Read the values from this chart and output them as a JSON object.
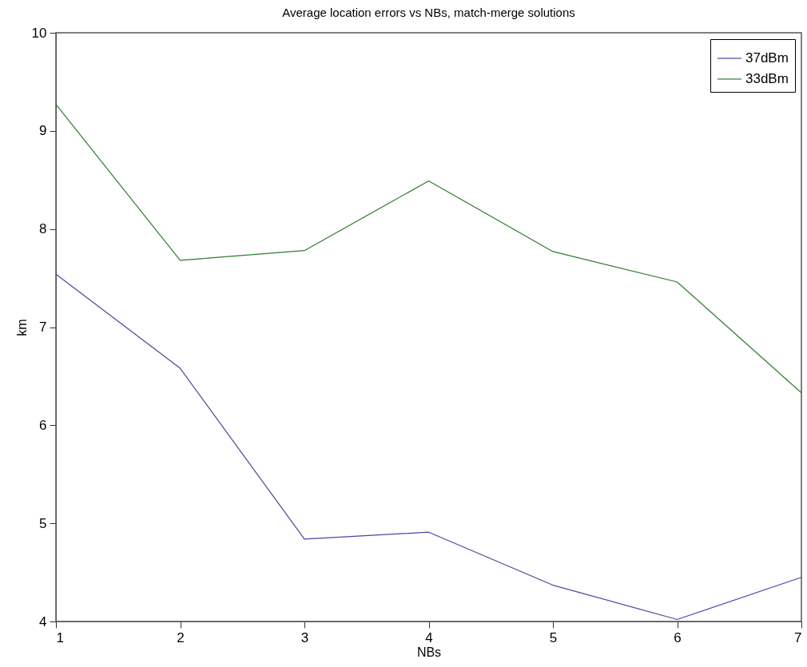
{
  "chart_data": {
    "type": "line",
    "title": "Average location errors vs NBs, match-merge solutions",
    "xlabel": "NBs",
    "ylabel": "km",
    "x": [
      1,
      2,
      3,
      4,
      5,
      6,
      7
    ],
    "series": [
      {
        "name": "37dBm",
        "color": "#4848a0",
        "values": [
          7.54,
          6.58,
          4.84,
          4.91,
          4.37,
          4.02,
          4.45
        ]
      },
      {
        "name": "33dBm",
        "color": "#2e7d2e",
        "values": [
          9.27,
          7.68,
          7.78,
          8.49,
          7.77,
          7.46,
          6.33
        ]
      }
    ],
    "xlim": [
      1,
      7
    ],
    "xticks": [
      1,
      2,
      3,
      4,
      5,
      6,
      7
    ],
    "ylim": [
      4,
      10
    ],
    "yticks": [
      4,
      5,
      6,
      7,
      8,
      9,
      10
    ],
    "grid": false,
    "legend": "top right",
    "marker": "none",
    "line_style": "solid"
  }
}
